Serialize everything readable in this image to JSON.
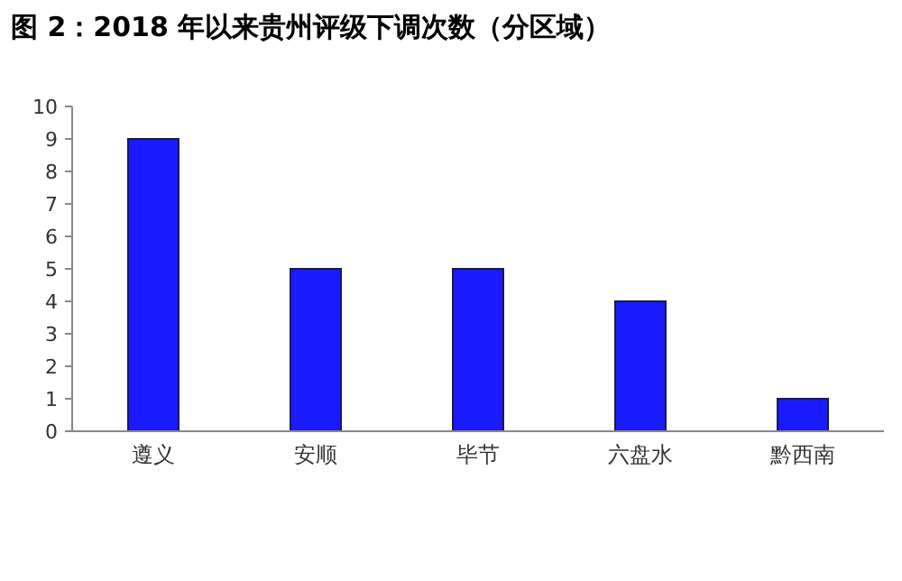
{
  "chart_data": {
    "type": "bar",
    "title": "图 2：2018 年以来贵州评级下调次数（分区域）",
    "categories": [
      "遵义",
      "安顺",
      "毕节",
      "六盘水",
      "黔西南"
    ],
    "values": [
      9,
      5,
      5,
      4,
      1
    ],
    "color": "#1a1aff",
    "ylim": [
      0,
      10
    ],
    "yticks": [
      0,
      1,
      2,
      3,
      4,
      5,
      6,
      7,
      8,
      9,
      10
    ],
    "grid": false
  }
}
